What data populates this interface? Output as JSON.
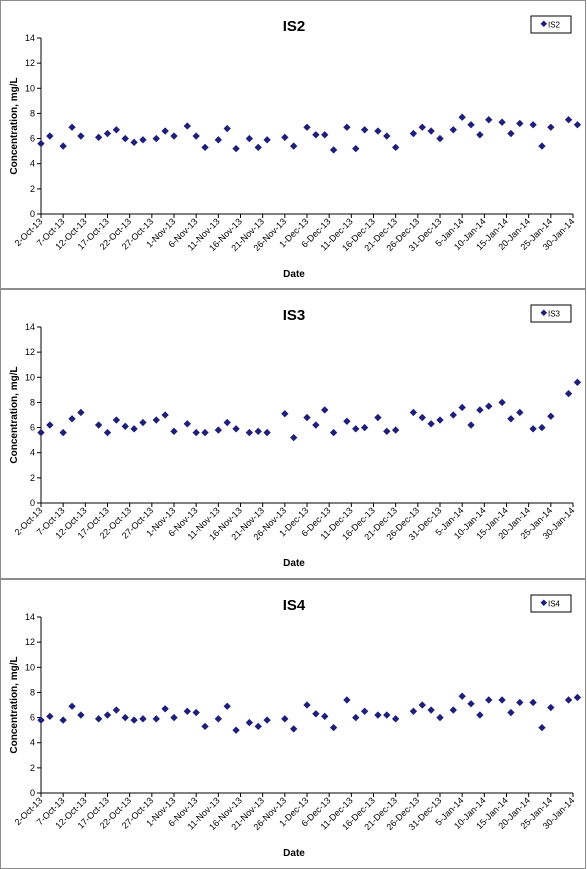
{
  "chart_data": [
    {
      "type": "scatter",
      "title": "IS2",
      "xlabel": "Date",
      "ylabel": "Concentration, mg/L",
      "ylim": [
        0,
        14
      ],
      "yticks": [
        0,
        2,
        4,
        6,
        8,
        10,
        12,
        14
      ],
      "xlim": [
        "2013-10-02",
        "2014-01-30"
      ],
      "xticks": [
        "2-Oct-13",
        "7-Oct-13",
        "12-Oct-13",
        "17-Oct-13",
        "22-Oct-13",
        "27-Oct-13",
        "1-Nov-13",
        "6-Nov-13",
        "11-Nov-13",
        "16-Nov-13",
        "21-Nov-13",
        "26-Nov-13",
        "1-Dec-13",
        "6-Dec-13",
        "11-Dec-13",
        "16-Dec-13",
        "21-Dec-13",
        "26-Dec-13",
        "31-Dec-13",
        "5-Jan-14",
        "10-Jan-14",
        "15-Jan-14",
        "20-Jan-14",
        "25-Jan-14",
        "30-Jan-14"
      ],
      "grid": false,
      "legend": "top-right",
      "marker_color": "#1f1f7a",
      "series": [
        {
          "name": "IS2",
          "x": [
            "2013-10-02",
            "2013-10-04",
            "2013-10-07",
            "2013-10-09",
            "2013-10-11",
            "2013-10-15",
            "2013-10-17",
            "2013-10-19",
            "2013-10-21",
            "2013-10-23",
            "2013-10-25",
            "2013-10-28",
            "2013-10-30",
            "2013-11-01",
            "2013-11-04",
            "2013-11-06",
            "2013-11-08",
            "2013-11-11",
            "2013-11-13",
            "2013-11-15",
            "2013-11-18",
            "2013-11-20",
            "2013-11-22",
            "2013-11-26",
            "2013-11-28",
            "2013-12-01",
            "2013-12-03",
            "2013-12-05",
            "2013-12-07",
            "2013-12-10",
            "2013-12-12",
            "2013-12-14",
            "2013-12-17",
            "2013-12-19",
            "2013-12-21",
            "2013-12-25",
            "2013-12-27",
            "2013-12-29",
            "2013-12-31",
            "2014-01-03",
            "2014-01-05",
            "2014-01-07",
            "2014-01-09",
            "2014-01-11",
            "2014-01-14",
            "2014-01-16",
            "2014-01-18",
            "2014-01-21",
            "2014-01-23",
            "2014-01-25",
            "2014-01-29",
            "2014-01-31"
          ],
          "y": [
            5.6,
            6.2,
            5.4,
            6.9,
            6.2,
            6.1,
            6.4,
            6.7,
            6.0,
            5.7,
            5.9,
            6.0,
            6.6,
            6.2,
            7.0,
            6.2,
            5.3,
            5.9,
            6.8,
            5.2,
            6.0,
            5.3,
            5.9,
            6.1,
            5.4,
            6.9,
            6.3,
            6.3,
            5.1,
            6.9,
            5.2,
            6.7,
            6.6,
            6.2,
            5.3,
            6.4,
            6.9,
            6.6,
            6.0,
            6.7,
            7.7,
            7.1,
            6.3,
            7.5,
            7.3,
            6.4,
            7.2,
            7.1,
            5.4,
            6.9,
            7.5,
            7.1
          ]
        }
      ]
    },
    {
      "type": "scatter",
      "title": "IS3",
      "xlabel": "Date",
      "ylabel": "Concentration, mg/L",
      "ylim": [
        0,
        14
      ],
      "yticks": [
        0,
        2,
        4,
        6,
        8,
        10,
        12,
        14
      ],
      "xlim": [
        "2013-10-02",
        "2014-01-30"
      ],
      "xticks": [
        "2-Oct-13",
        "7-Oct-13",
        "12-Oct-13",
        "17-Oct-13",
        "22-Oct-13",
        "27-Oct-13",
        "1-Nov-13",
        "6-Nov-13",
        "11-Nov-13",
        "16-Nov-13",
        "21-Nov-13",
        "26-Nov-13",
        "1-Dec-13",
        "6-Dec-13",
        "11-Dec-13",
        "16-Dec-13",
        "21-Dec-13",
        "26-Dec-13",
        "31-Dec-13",
        "5-Jan-14",
        "10-Jan-14",
        "15-Jan-14",
        "20-Jan-14",
        "25-Jan-14",
        "30-Jan-14"
      ],
      "grid": false,
      "legend": "top-right",
      "marker_color": "#1f1f7a",
      "series": [
        {
          "name": "IS3",
          "x": [
            "2013-10-02",
            "2013-10-04",
            "2013-10-07",
            "2013-10-09",
            "2013-10-11",
            "2013-10-15",
            "2013-10-17",
            "2013-10-19",
            "2013-10-21",
            "2013-10-23",
            "2013-10-25",
            "2013-10-28",
            "2013-10-30",
            "2013-11-01",
            "2013-11-04",
            "2013-11-06",
            "2013-11-08",
            "2013-11-11",
            "2013-11-13",
            "2013-11-15",
            "2013-11-18",
            "2013-11-20",
            "2013-11-22",
            "2013-11-26",
            "2013-11-28",
            "2013-12-01",
            "2013-12-03",
            "2013-12-05",
            "2013-12-07",
            "2013-12-10",
            "2013-12-12",
            "2013-12-14",
            "2013-12-17",
            "2013-12-19",
            "2013-12-21",
            "2013-12-25",
            "2013-12-27",
            "2013-12-29",
            "2013-12-31",
            "2014-01-03",
            "2014-01-05",
            "2014-01-07",
            "2014-01-09",
            "2014-01-11",
            "2014-01-14",
            "2014-01-16",
            "2014-01-18",
            "2014-01-21",
            "2014-01-23",
            "2014-01-25",
            "2014-01-29",
            "2014-01-31"
          ],
          "y": [
            5.6,
            6.2,
            5.6,
            6.7,
            7.2,
            6.2,
            5.6,
            6.6,
            6.1,
            5.9,
            6.4,
            6.6,
            7.0,
            5.7,
            6.3,
            5.6,
            5.6,
            5.8,
            6.4,
            5.9,
            5.6,
            5.7,
            5.6,
            7.1,
            5.2,
            6.8,
            6.2,
            7.4,
            5.6,
            6.5,
            5.9,
            6.0,
            6.8,
            5.7,
            5.8,
            7.2,
            6.8,
            6.3,
            6.6,
            7.0,
            7.6,
            6.2,
            7.4,
            7.7,
            8.0,
            6.7,
            7.2,
            5.9,
            6.0,
            6.9,
            8.7,
            9.6
          ]
        }
      ]
    },
    {
      "type": "scatter",
      "title": "IS4",
      "xlabel": "Date",
      "ylabel": "Concentration, mg/L",
      "ylim": [
        0,
        14
      ],
      "yticks": [
        0,
        2,
        4,
        6,
        8,
        10,
        12,
        14
      ],
      "xlim": [
        "2013-10-02",
        "2014-01-30"
      ],
      "xticks": [
        "2-Oct-13",
        "7-Oct-13",
        "12-Oct-13",
        "17-Oct-13",
        "22-Oct-13",
        "27-Oct-13",
        "1-Nov-13",
        "6-Nov-13",
        "11-Nov-13",
        "16-Nov-13",
        "21-Nov-13",
        "26-Nov-13",
        "1-Dec-13",
        "6-Dec-13",
        "11-Dec-13",
        "16-Dec-13",
        "21-Dec-13",
        "26-Dec-13",
        "31-Dec-13",
        "5-Jan-14",
        "10-Jan-14",
        "15-Jan-14",
        "20-Jan-14",
        "25-Jan-14",
        "30-Jan-14"
      ],
      "grid": false,
      "legend": "top-right",
      "marker_color": "#1f1f7a",
      "series": [
        {
          "name": "IS4",
          "x": [
            "2013-10-02",
            "2013-10-04",
            "2013-10-07",
            "2013-10-09",
            "2013-10-11",
            "2013-10-15",
            "2013-10-17",
            "2013-10-19",
            "2013-10-21",
            "2013-10-23",
            "2013-10-25",
            "2013-10-28",
            "2013-10-30",
            "2013-11-01",
            "2013-11-04",
            "2013-11-06",
            "2013-11-08",
            "2013-11-11",
            "2013-11-13",
            "2013-11-15",
            "2013-11-18",
            "2013-11-20",
            "2013-11-22",
            "2013-11-26",
            "2013-11-28",
            "2013-12-01",
            "2013-12-03",
            "2013-12-05",
            "2013-12-07",
            "2013-12-10",
            "2013-12-12",
            "2013-12-14",
            "2013-12-17",
            "2013-12-19",
            "2013-12-21",
            "2013-12-25",
            "2013-12-27",
            "2013-12-29",
            "2013-12-31",
            "2014-01-03",
            "2014-01-05",
            "2014-01-07",
            "2014-01-09",
            "2014-01-11",
            "2014-01-14",
            "2014-01-16",
            "2014-01-18",
            "2014-01-21",
            "2014-01-23",
            "2014-01-25",
            "2014-01-29",
            "2014-01-31"
          ],
          "y": [
            5.8,
            6.1,
            5.8,
            6.9,
            6.2,
            5.9,
            6.2,
            6.6,
            6.0,
            5.8,
            5.9,
            5.9,
            6.7,
            6.0,
            6.5,
            6.4,
            5.3,
            5.9,
            6.9,
            5.0,
            5.6,
            5.3,
            5.8,
            5.9,
            5.1,
            7.0,
            6.3,
            6.1,
            5.2,
            7.4,
            6.0,
            6.5,
            6.2,
            6.2,
            5.9,
            6.5,
            7.0,
            6.6,
            6.0,
            6.6,
            7.7,
            7.1,
            6.2,
            7.4,
            7.4,
            6.4,
            7.2,
            7.2,
            5.2,
            6.8,
            7.4,
            7.6
          ]
        }
      ]
    }
  ]
}
